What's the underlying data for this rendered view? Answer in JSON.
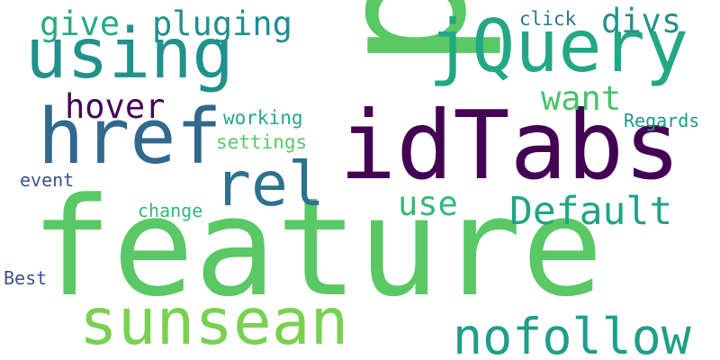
{
  "words": {
    "feature": {
      "text": "feature",
      "color": "#5ac864"
    },
    "p": {
      "text": "p",
      "color": "#5ac864"
    },
    "idtabs": {
      "text": "idTabs",
      "color": "#440154"
    },
    "using": {
      "text": "using",
      "color": "#21918c"
    },
    "jquery": {
      "text": "jQuery",
      "color": "#22a884"
    },
    "href": {
      "text": "href",
      "color": "#31688e"
    },
    "sunsean": {
      "text": "sunsean",
      "color": "#7ad151"
    },
    "nofollow": {
      "text": "nofollow",
      "color": "#1f9e89"
    },
    "rel": {
      "text": "rel",
      "color": "#2c728e"
    },
    "default": {
      "text": "Default",
      "color": "#20a486"
    },
    "give": {
      "text": "give",
      "color": "#25ab82"
    },
    "pluging": {
      "text": "pluging",
      "color": "#218f8d"
    },
    "divs": {
      "text": "divs",
      "color": "#21918c"
    },
    "hover": {
      "text": "hover",
      "color": "#440154"
    },
    "want": {
      "text": "want",
      "color": "#4ac16d"
    },
    "use": {
      "text": "use",
      "color": "#37b878"
    },
    "working": {
      "text": "working",
      "color": "#23a983"
    },
    "settings": {
      "text": "settings",
      "color": "#5ac864"
    },
    "click": {
      "text": "click",
      "color": "#2a788e"
    },
    "regards": {
      "text": "Regards",
      "color": "#1f9a8a"
    },
    "event": {
      "text": "event",
      "color": "#3b528b"
    },
    "change": {
      "text": "change",
      "color": "#35b779"
    },
    "best": {
      "text": "Best",
      "color": "#3b528b"
    }
  }
}
